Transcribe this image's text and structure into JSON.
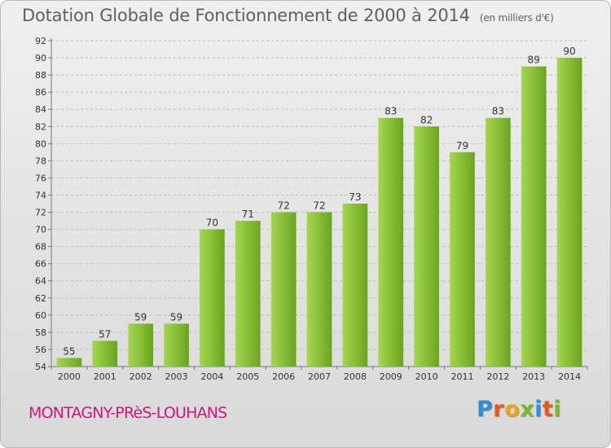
{
  "title": "Dotation Globale de Fonctionnement de 2000 à 2014",
  "subtitle": "(en milliers d'€)",
  "commune": "MONTAGNY-PRèS-LOUHANS",
  "logo": {
    "text": "Proxiti",
    "letters": [
      {
        "ch": "P",
        "color": "#2f8fd6"
      },
      {
        "ch": "r",
        "color": "#e2591b"
      },
      {
        "ch": "o",
        "color": "#f2a21d"
      },
      {
        "ch": "x",
        "color": "#7cb82f"
      },
      {
        "ch": "i",
        "color": "#2f8fd6"
      },
      {
        "ch": "t",
        "color": "#e2591b"
      },
      {
        "ch": "i",
        "color": "#7cb82f"
      }
    ]
  },
  "colors": {
    "bar_light": "#a6d64f",
    "bar_dark": "#6aa520",
    "axis_text": "#333333",
    "commune": "#c9187a"
  },
  "chart_data": {
    "type": "bar",
    "categories": [
      "2000",
      "2001",
      "2002",
      "2003",
      "2004",
      "2005",
      "2006",
      "2007",
      "2008",
      "2009",
      "2010",
      "2011",
      "2012",
      "2013",
      "2014"
    ],
    "values": [
      55,
      57,
      59,
      59,
      70,
      71,
      72,
      72,
      73,
      83,
      82,
      79,
      83,
      89,
      90
    ],
    "ylim": [
      54,
      92
    ],
    "yticks": [
      54,
      56,
      58,
      60,
      62,
      64,
      66,
      68,
      70,
      72,
      74,
      76,
      78,
      80,
      82,
      84,
      86,
      88,
      90,
      92
    ],
    "grid": true,
    "legend": "none"
  }
}
